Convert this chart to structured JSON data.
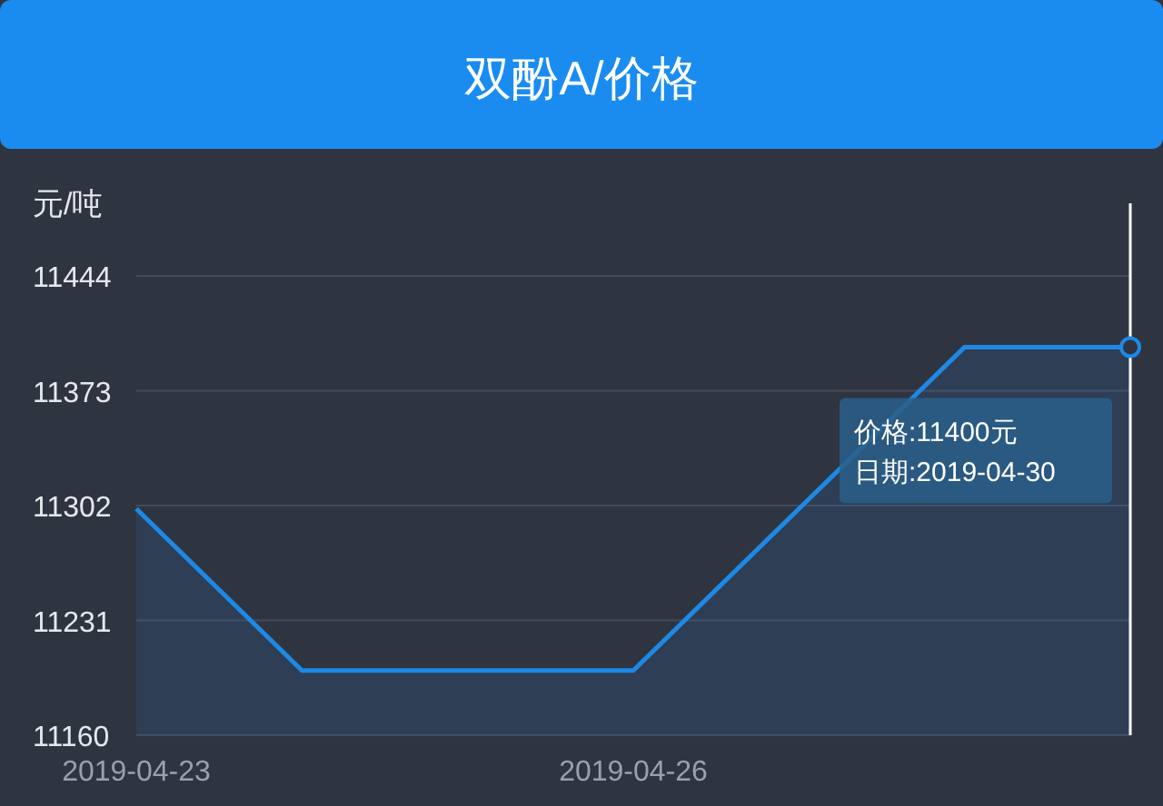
{
  "chart_data": {
    "type": "area",
    "title": "双酚A/价格",
    "ylabel": "元/吨",
    "categories": [
      "2019-04-23",
      null,
      null,
      "2019-04-26",
      null,
      null,
      null
    ],
    "series": [
      {
        "color": "#1e88e5",
        "values": [
          11300,
          11200,
          11200,
          11200,
          11300,
          11400,
          11400
        ]
      }
    ],
    "ylim": [
      11160,
      11444
    ],
    "yticks": [
      11160,
      11231,
      11302,
      11373,
      11444
    ],
    "grid": "y",
    "marker": "none",
    "annotations": [
      "价格:11400元",
      "日期:2019-04-30"
    ]
  }
}
